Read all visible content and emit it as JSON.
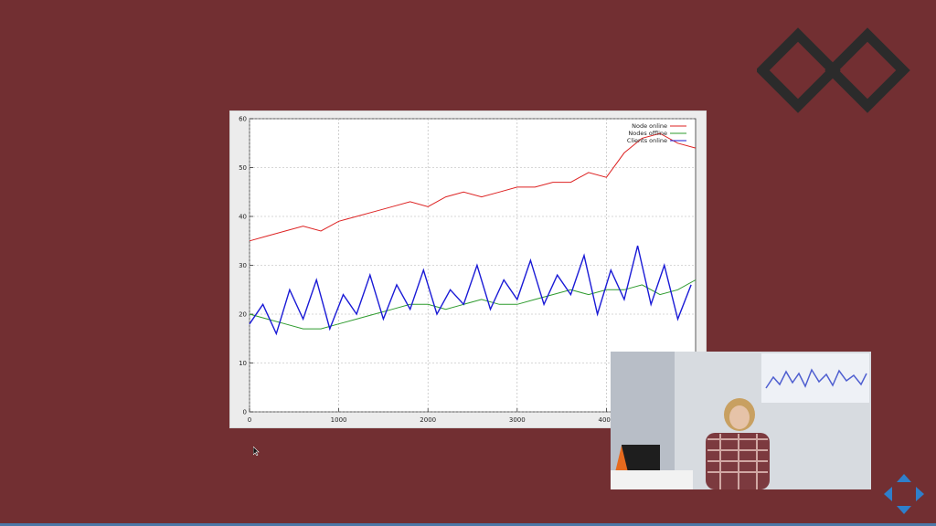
{
  "slide": {
    "background": "#722f32",
    "logo_icon": "double-diamond-logo",
    "nav_icon": "presentation-navigation-arrows"
  },
  "chart_data": {
    "type": "line",
    "title": "",
    "xlabel": "",
    "ylabel": "",
    "xlim": [
      0,
      5000
    ],
    "ylim": [
      0,
      60
    ],
    "x_ticks": [
      0,
      1000,
      2000,
      3000,
      4000
    ],
    "y_ticks": [
      0,
      10,
      20,
      30,
      40,
      50,
      60
    ],
    "grid": true,
    "legend_position": "top-right",
    "series": [
      {
        "name": "Node online",
        "color": "#dd2222",
        "x": [
          0,
          200,
          400,
          600,
          800,
          1000,
          1200,
          1400,
          1600,
          1800,
          2000,
          2200,
          2400,
          2600,
          2800,
          3000,
          3200,
          3400,
          3600,
          3800,
          4000,
          4200,
          4400,
          4600,
          4800,
          5000
        ],
        "values": [
          35,
          36,
          37,
          38,
          37,
          39,
          40,
          41,
          42,
          43,
          42,
          44,
          45,
          44,
          45,
          46,
          46,
          47,
          47,
          49,
          48,
          53,
          56,
          57,
          55,
          54
        ]
      },
      {
        "name": "Nodes offline",
        "color": "#2e9b2e",
        "x": [
          0,
          200,
          400,
          600,
          800,
          1000,
          1200,
          1400,
          1600,
          1800,
          2000,
          2200,
          2400,
          2600,
          2800,
          3000,
          3200,
          3400,
          3600,
          3800,
          4000,
          4200,
          4400,
          4600,
          4800,
          5000
        ],
        "values": [
          20,
          19,
          18,
          17,
          17,
          18,
          19,
          20,
          21,
          22,
          22,
          21,
          22,
          23,
          22,
          22,
          23,
          24,
          25,
          24,
          25,
          25,
          26,
          24,
          25,
          27
        ]
      },
      {
        "name": "Clients online",
        "color": "#1a1ad6",
        "x": [
          0,
          150,
          300,
          450,
          600,
          750,
          900,
          1050,
          1200,
          1350,
          1500,
          1650,
          1800,
          1950,
          2100,
          2250,
          2400,
          2550,
          2700,
          2850,
          3000,
          3150,
          3300,
          3450,
          3600,
          3750,
          3900,
          4050,
          4200,
          4350,
          4500,
          4650,
          4800,
          4950
        ],
        "values": [
          18,
          22,
          16,
          25,
          19,
          27,
          17,
          24,
          20,
          28,
          19,
          26,
          21,
          29,
          20,
          25,
          22,
          30,
          21,
          27,
          23,
          31,
          22,
          28,
          24,
          32,
          20,
          29,
          23,
          34,
          22,
          30,
          19,
          26
        ]
      }
    ]
  }
}
